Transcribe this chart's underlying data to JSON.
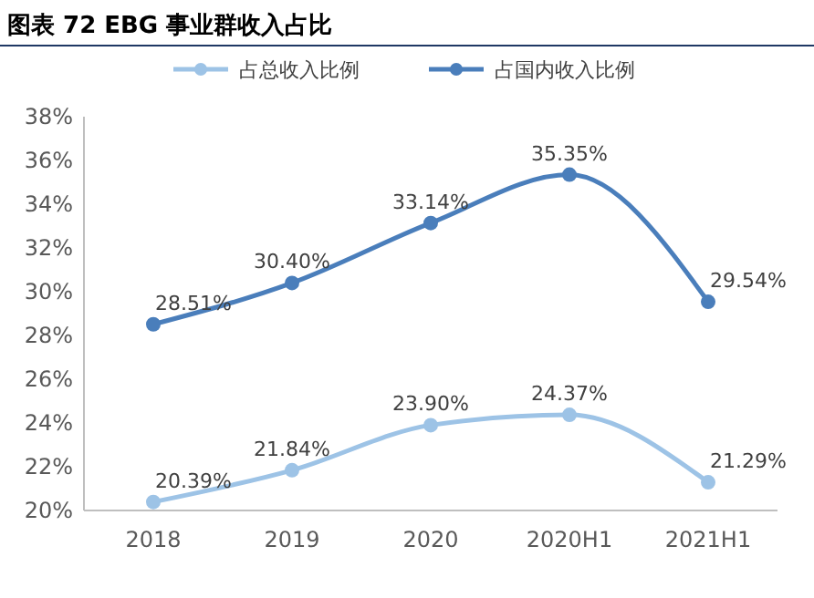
{
  "chart_data": {
    "type": "line",
    "title": "图表 72 EBG 事业群收入占比",
    "categories": [
      "2018",
      "2019",
      "2020",
      "2020H1",
      "2021H1"
    ],
    "series": [
      {
        "name": "占总收入比例",
        "color": "#9dc3e6",
        "values": [
          20.39,
          21.84,
          23.9,
          24.37,
          21.29
        ],
        "value_labels": [
          "20.39%",
          "21.84%",
          "23.90%",
          "24.37%",
          "21.29%"
        ]
      },
      {
        "name": "占国内收入比例",
        "color": "#4a7ebb",
        "values": [
          28.51,
          30.4,
          33.14,
          35.35,
          29.54
        ],
        "value_labels": [
          "28.51%",
          "30.40%",
          "33.14%",
          "35.35%",
          "29.54%"
        ]
      }
    ],
    "ylim": [
      20,
      38
    ],
    "yticks": [
      {
        "value": 20,
        "label": "20%"
      },
      {
        "value": 22,
        "label": "22%"
      },
      {
        "value": 24,
        "label": "24%"
      },
      {
        "value": 26,
        "label": "26%"
      },
      {
        "value": 28,
        "label": "28%"
      },
      {
        "value": 30,
        "label": "30%"
      },
      {
        "value": 32,
        "label": "32%"
      },
      {
        "value": 34,
        "label": "34%"
      },
      {
        "value": 36,
        "label": "36%"
      },
      {
        "value": 38,
        "label": "38%"
      }
    ],
    "grid": false,
    "legend": "top",
    "marker": "circle",
    "line_style": "solid"
  }
}
